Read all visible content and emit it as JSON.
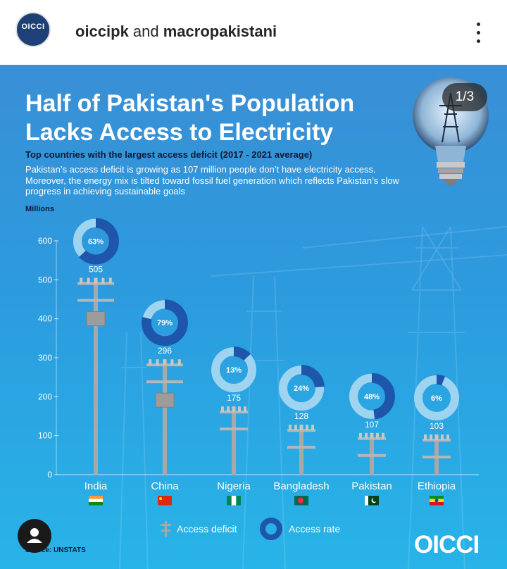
{
  "header": {
    "account_primary": "oiccipk",
    "and_text": " and ",
    "account_secondary": "macropakistani"
  },
  "post": {
    "counter": "1/3",
    "title": "Half of Pakistan's Population Lacks Access to Electricity",
    "subtitle": "Top countries with the largest access deficit (2017 - 2021 average)",
    "description": "Pakistan’s access deficit is growing as 107 million people don’t have electricity access. Moreover, the energy mix is tilted toward fossil fuel generation which reflects Pakistan’s slow progress in achieving sustainable goals",
    "source": "Source: UNSTATS",
    "brand": "OICCI",
    "avatar_text": "OICCI"
  },
  "colors": {
    "accent_blue": "#2a66c7",
    "dark_blue": "#1e56ac",
    "ring_light": "#9fd4f0",
    "pole": "#a8a8a8"
  },
  "chart_data": {
    "type": "bar",
    "ylabel": "Millions",
    "ylim": [
      0,
      600
    ],
    "yticks": [
      0,
      100,
      200,
      300,
      400,
      500,
      600
    ],
    "categories": [
      "India",
      "China",
      "Nigeria",
      "Bangladesh",
      "Pakistan",
      "Ethiopia"
    ],
    "series": [
      {
        "name": "Access deficit",
        "values": [
          505,
          296,
          175,
          128,
          107,
          103
        ]
      },
      {
        "name": "Access rate",
        "values": [
          63,
          79,
          13,
          24,
          48,
          6
        ],
        "unit": "%"
      }
    ],
    "flags": [
      "india-flag",
      "china-flag",
      "nigeria-flag",
      "bangladesh-flag",
      "pakistan-flag",
      "ethiopia-flag"
    ],
    "legend": [
      "Access deficit",
      "Access rate"
    ],
    "grid": false
  }
}
